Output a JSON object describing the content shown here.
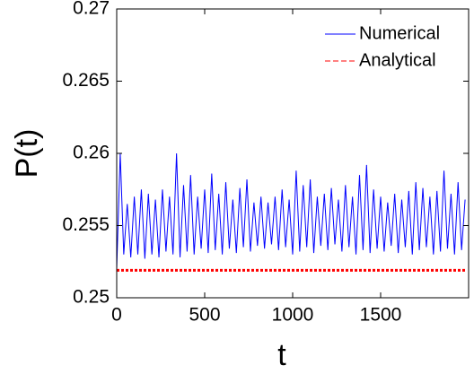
{
  "chart_data": {
    "type": "line",
    "xlabel": "t",
    "ylabel": "P(t)",
    "xlim": [
      0,
      2000
    ],
    "ylim": [
      0.25,
      0.27
    ],
    "xticks": [
      0,
      500,
      1000,
      1500
    ],
    "yticks": [
      0.25,
      0.255,
      0.26,
      0.265,
      0.27
    ],
    "legend": "upper right",
    "x": [
      0,
      20,
      40,
      60,
      80,
      100,
      120,
      140,
      160,
      180,
      200,
      220,
      240,
      260,
      280,
      300,
      320,
      340,
      360,
      380,
      400,
      420,
      440,
      460,
      480,
      500,
      520,
      540,
      560,
      580,
      600,
      620,
      640,
      660,
      680,
      700,
      720,
      740,
      760,
      780,
      800,
      820,
      840,
      860,
      880,
      900,
      920,
      940,
      960,
      980,
      1000,
      1020,
      1040,
      1060,
      1080,
      1100,
      1120,
      1140,
      1160,
      1180,
      1200,
      1220,
      1240,
      1260,
      1280,
      1300,
      1320,
      1340,
      1360,
      1380,
      1400,
      1420,
      1440,
      1460,
      1480,
      1500,
      1520,
      1540,
      1560,
      1580,
      1600,
      1620,
      1640,
      1660,
      1680,
      1700,
      1720,
      1740,
      1760,
      1780,
      1800,
      1820,
      1840,
      1860,
      1880,
      1900,
      1920,
      1940,
      1960,
      1980
    ],
    "series": [
      {
        "name": "Numerical",
        "color": "#0000ff",
        "style": "solid",
        "values": [
          0.252,
          0.26,
          0.253,
          0.2565,
          0.2528,
          0.257,
          0.253,
          0.2575,
          0.2527,
          0.2572,
          0.253,
          0.2568,
          0.2528,
          0.2575,
          0.2532,
          0.257,
          0.253,
          0.26,
          0.2528,
          0.2578,
          0.2532,
          0.2585,
          0.253,
          0.257,
          0.2534,
          0.2575,
          0.2531,
          0.2586,
          0.2533,
          0.2572,
          0.253,
          0.258,
          0.2534,
          0.2568,
          0.2531,
          0.2576,
          0.2535,
          0.2582,
          0.2532,
          0.2566,
          0.2536,
          0.257,
          0.2534,
          0.2566,
          0.2537,
          0.257,
          0.2533,
          0.2575,
          0.2535,
          0.2568,
          0.253,
          0.2588,
          0.2532,
          0.2578,
          0.2535,
          0.2582,
          0.2531,
          0.257,
          0.2536,
          0.2572,
          0.2533,
          0.2576,
          0.2537,
          0.2568,
          0.2532,
          0.2578,
          0.2535,
          0.257,
          0.253,
          0.2585,
          0.2533,
          0.2592,
          0.2531,
          0.2575,
          0.2534,
          0.257,
          0.2532,
          0.2566,
          0.2536,
          0.2572,
          0.2531,
          0.2568,
          0.2535,
          0.2574,
          0.253,
          0.258,
          0.2533,
          0.2576,
          0.2535,
          0.257,
          0.253,
          0.2574,
          0.2532,
          0.2588,
          0.2534,
          0.2572,
          0.253,
          0.258,
          0.2533,
          0.2568
        ]
      },
      {
        "name": "Analytical",
        "color": "#ff0000",
        "style": "dashed",
        "values": [
          0.2519,
          0.2519,
          0.2519,
          0.2519,
          0.2519,
          0.2519,
          0.2519,
          0.2519,
          0.2519,
          0.2519,
          0.2519,
          0.2519,
          0.2519,
          0.2519,
          0.2519,
          0.2519,
          0.2519,
          0.2519,
          0.2519,
          0.2519,
          0.2519,
          0.2519,
          0.2519,
          0.2519,
          0.2519,
          0.2519,
          0.2519,
          0.2519,
          0.2519,
          0.2519,
          0.2519,
          0.2519,
          0.2519,
          0.2519,
          0.2519,
          0.2519,
          0.2519,
          0.2519,
          0.2519,
          0.2519,
          0.2519,
          0.2519,
          0.2519,
          0.2519,
          0.2519,
          0.2519,
          0.2519,
          0.2519,
          0.2519,
          0.2519,
          0.2519,
          0.2519,
          0.2519,
          0.2519,
          0.2519,
          0.2519,
          0.2519,
          0.2519,
          0.2519,
          0.2519,
          0.2519,
          0.2519,
          0.2519,
          0.2519,
          0.2519,
          0.2519,
          0.2519,
          0.2519,
          0.2519,
          0.2519,
          0.2519,
          0.2519,
          0.2519,
          0.2519,
          0.2519,
          0.2519,
          0.2519,
          0.2519,
          0.2519,
          0.2519,
          0.2519,
          0.2519,
          0.2519,
          0.2519,
          0.2519,
          0.2519,
          0.2519,
          0.2519,
          0.2519,
          0.2519,
          0.2519,
          0.2519,
          0.2519,
          0.2519,
          0.2519,
          0.2519,
          0.2519,
          0.2519,
          0.2519,
          0.2519
        ]
      }
    ]
  }
}
